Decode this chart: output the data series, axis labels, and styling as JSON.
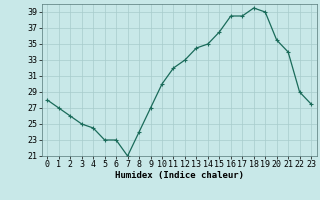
{
  "x": [
    0,
    1,
    2,
    3,
    4,
    5,
    6,
    7,
    8,
    9,
    10,
    11,
    12,
    13,
    14,
    15,
    16,
    17,
    18,
    19,
    20,
    21,
    22,
    23
  ],
  "y": [
    28,
    27,
    26,
    25,
    24.5,
    23,
    23,
    21,
    24,
    27,
    30,
    32,
    33,
    34.5,
    35,
    36.5,
    38.5,
    38.5,
    39.5,
    39,
    35.5,
    34,
    29,
    27.5
  ],
  "line_color": "#1a6b5a",
  "marker": "+",
  "bg_color": "#c8e8e8",
  "grid_color": "#a8cccc",
  "xlabel": "Humidex (Indice chaleur)",
  "ylim": [
    21,
    40
  ],
  "xlim": [
    -0.5,
    23.5
  ],
  "yticks": [
    21,
    23,
    25,
    27,
    29,
    31,
    33,
    35,
    37,
    39
  ],
  "xticks": [
    0,
    1,
    2,
    3,
    4,
    5,
    6,
    7,
    8,
    9,
    10,
    11,
    12,
    13,
    14,
    15,
    16,
    17,
    18,
    19,
    20,
    21,
    22,
    23
  ],
  "label_fontsize": 6.5,
  "tick_fontsize": 6
}
